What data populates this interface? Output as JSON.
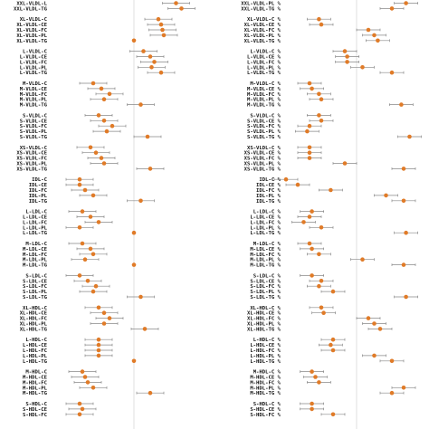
{
  "chart_data": [
    {
      "type": "scatter",
      "panel": "left",
      "title": "",
      "xlabel": "",
      "ylabel": "",
      "xlim": [
        -0.6,
        0.6
      ],
      "reference_line": 0,
      "point_color": "#e07b28",
      "interval_color": "#888888",
      "reference_color": "#d8d8d8",
      "categories": [
        "XXL-VLDL-L",
        "XXL-VLDL-TG",
        "",
        "XL-VLDL-C",
        "XL-VLDL-CE",
        "XL-VLDL-FC",
        "XL-VLDL-PL",
        "XL-VLDL-TG",
        "",
        "L-VLDL-C",
        "L-VLDL-CE",
        "L-VLDL-FC",
        "L-VLDL-PL",
        "L-VLDL-TG",
        "",
        "M-VLDL-C",
        "M-VLDL-CE",
        "M-VLDL-FC",
        "M-VLDL-PL",
        "M-VLDL-TG",
        "",
        "S-VLDL-C",
        "S-VLDL-CE",
        "S-VLDL-FC",
        "S-VLDL-PL",
        "S-VLDL-TG",
        "",
        "XS-VLDL-C",
        "XS-VLDL-CE",
        "XS-VLDL-FC",
        "XS-VLDL-PL",
        "XS-VLDL-TG",
        "",
        "IDL-C",
        "IDL-CE",
        "IDL-FC",
        "IDL-PL",
        "IDL-TG",
        "",
        "L-LDL-C",
        "L-LDL-CE",
        "L-LDL-FC",
        "L-LDL-PL",
        "L-LDL-TG",
        "",
        "M-LDL-C",
        "M-LDL-CE",
        "M-LDL-FC",
        "M-LDL-PL",
        "M-LDL-TG",
        "",
        "S-LDL-C",
        "S-LDL-CE",
        "S-LDL-FC",
        "S-LDL-PL",
        "S-LDL-TG",
        "",
        "XL-HDL-C",
        "XL-HDL-CE",
        "XL-HDL-FC",
        "XL-HDL-PL",
        "XL-HDL-TG",
        "",
        "L-HDL-C",
        "L-HDL-CE",
        "L-HDL-FC",
        "L-HDL-PL",
        "L-HDL-TG",
        "",
        "M-HDL-C",
        "M-HDL-CE",
        "M-HDL-FC",
        "M-HDL-PL",
        "M-HDL-TG",
        "",
        "S-HDL-C",
        "S-HDL-CE",
        "S-HDL-FC"
      ],
      "estimates": [
        0.31,
        0.35,
        null,
        0.18,
        0.2,
        0.21,
        0.22,
        0.0,
        null,
        0.07,
        0.12,
        0.15,
        0.13,
        0.2,
        null,
        -0.3,
        -0.24,
        -0.18,
        -0.22,
        0.05,
        null,
        -0.26,
        -0.22,
        -0.16,
        -0.2,
        0.1,
        null,
        -0.32,
        -0.28,
        -0.24,
        -0.22,
        0.12,
        null,
        -0.4,
        -0.4,
        -0.36,
        -0.3,
        0.05,
        null,
        -0.38,
        -0.32,
        -0.26,
        -0.4,
        0.0,
        null,
        -0.38,
        -0.32,
        -0.3,
        -0.36,
        0.0,
        null,
        -0.4,
        -0.34,
        -0.28,
        -0.3,
        0.05,
        null,
        -0.26,
        -0.22,
        -0.18,
        -0.22,
        0.08,
        null,
        -0.26,
        -0.26,
        -0.26,
        -0.26,
        0.0,
        null,
        -0.38,
        -0.36,
        -0.34,
        -0.3,
        0.12,
        null,
        -0.4,
        -0.38,
        -0.4
      ],
      "ci_half_width": [
        0.1,
        0.1,
        null,
        0.1,
        0.1,
        0.1,
        0.1,
        0.0,
        null,
        0.1,
        0.1,
        0.1,
        0.1,
        0.1,
        null,
        0.1,
        0.1,
        0.1,
        0.1,
        0.1,
        null,
        0.1,
        0.1,
        0.1,
        0.1,
        0.1,
        null,
        0.1,
        0.1,
        0.1,
        0.1,
        0.1,
        null,
        0.1,
        0.1,
        0.1,
        0.1,
        0.1,
        null,
        0.1,
        0.1,
        0.1,
        0.1,
        0.0,
        null,
        0.1,
        0.1,
        0.1,
        0.1,
        0.0,
        null,
        0.1,
        0.1,
        0.1,
        0.1,
        0.1,
        null,
        0.1,
        0.1,
        0.1,
        0.1,
        0.1,
        null,
        0.1,
        0.1,
        0.1,
        0.1,
        0.0,
        null,
        0.1,
        0.1,
        0.1,
        0.1,
        0.1,
        null,
        0.1,
        0.1,
        0.1
      ]
    },
    {
      "type": "scatter",
      "panel": "right",
      "title": "",
      "xlabel": "",
      "ylabel": "",
      "xlim": [
        -0.6,
        0.6
      ],
      "reference_line": 0,
      "point_color": "#e07b28",
      "interval_color": "#888888",
      "reference_color": "#d8d8d8",
      "categories": [
        "XXL-VLDL-PL %",
        "XXL-VLDL-TG %",
        "",
        "XL-VLDL-C %",
        "XL-VLDL-CE %",
        "XL-VLDL-FC %",
        "XL-VLDL-PL %",
        "XL-VLDL-TG %",
        "",
        "L-VLDL-C %",
        "L-VLDL-CE %",
        "L-VLDL-FC %",
        "L-VLDL-PL %",
        "L-VLDL-TG %",
        "",
        "M-VLDL-C %",
        "M-VLDL-CE %",
        "M-VLDL-FC %",
        "M-VLDL-PL %",
        "M-VLDL-TG %",
        "",
        "S-VLDL-C %",
        "S-VLDL-CE %",
        "S-VLDL-FC %",
        "S-VLDL-PL %",
        "S-VLDL-TG %",
        "",
        "XS-VLDL-C %",
        "XS-VLDL-CE %",
        "XS-VLDL-FC %",
        "XS-VLDL-PL %",
        "XS-VLDL-TG %",
        "",
        "IDL-C %",
        "IDL-CE %",
        "IDL-FC %",
        "IDL-PL %",
        "IDL-TG %",
        "",
        "L-LDL-C %",
        "L-LDL-CE %",
        "L-LDL-FC %",
        "L-LDL-PL %",
        "L-LDL-TG %",
        "",
        "M-LDL-C %",
        "M-LDL-CE %",
        "M-LDL-FC %",
        "M-LDL-PL %",
        "M-LDL-TG %",
        "",
        "S-LDL-C %",
        "S-LDL-CE %",
        "S-LDL-FC %",
        "S-LDL-PL %",
        "S-LDL-TG %",
        "",
        "XL-HDL-C %",
        "XL-HDL-CE %",
        "XL-HDL-FC %",
        "XL-HDL-PL %",
        "XL-HDL-TG %",
        "",
        "L-HDL-C %",
        "L-HDL-CE %",
        "L-HDL-FC %",
        "L-HDL-PL %",
        "L-HDL-TG %",
        "",
        "M-HDL-C %",
        "M-HDL-CE %",
        "M-HDL-FC %",
        "M-HDL-PL %",
        "M-HDL-TG %",
        "",
        "S-HDL-C %",
        "S-HDL-CE %",
        "S-HDL-FC %"
      ],
      "estimates": [
        0.42,
        0.3,
        null,
        -0.32,
        -0.3,
        0.1,
        0.15,
        0.18,
        null,
        -0.1,
        -0.08,
        -0.08,
        0.05,
        0.3,
        null,
        -0.4,
        -0.38,
        -0.32,
        -0.3,
        0.38,
        null,
        -0.32,
        -0.3,
        -0.4,
        -0.42,
        0.45,
        null,
        -0.4,
        -0.4,
        -0.4,
        -0.1,
        0.4,
        null,
        -0.6,
        -0.5,
        -0.22,
        0.25,
        0.4,
        null,
        -0.38,
        -0.4,
        -0.45,
        -0.3,
        0.42,
        null,
        -0.4,
        -0.38,
        -0.32,
        0.05,
        0.4,
        null,
        -0.38,
        -0.3,
        -0.32,
        -0.2,
        0.42,
        null,
        -0.3,
        -0.28,
        0.1,
        0.15,
        0.2,
        null,
        -0.2,
        -0.22,
        -0.2,
        0.15,
        0.3,
        null,
        -0.38,
        -0.35,
        -0.32,
        0.4,
        0.3,
        null,
        -0.38,
        -0.38,
        -0.2
      ],
      "ci_half_width": [
        0.1,
        0.1,
        null,
        0.1,
        0.1,
        0.1,
        0.1,
        0.1,
        null,
        0.1,
        0.1,
        0.1,
        0.1,
        0.1,
        null,
        0.1,
        0.1,
        0.1,
        0.1,
        0.1,
        null,
        0.1,
        0.1,
        0.1,
        0.1,
        0.1,
        null,
        0.1,
        0.1,
        0.1,
        0.1,
        0.1,
        null,
        0.1,
        0.1,
        0.1,
        0.1,
        0.1,
        null,
        0.1,
        0.1,
        0.1,
        0.1,
        0.1,
        null,
        0.1,
        0.1,
        0.1,
        0.1,
        0.1,
        null,
        0.1,
        0.1,
        0.1,
        0.1,
        0.1,
        null,
        0.1,
        0.1,
        0.1,
        0.1,
        0.1,
        null,
        0.1,
        0.1,
        0.1,
        0.1,
        0.1,
        null,
        0.1,
        0.1,
        0.1,
        0.1,
        0.1,
        null,
        0.1,
        0.1,
        0.1
      ]
    }
  ]
}
